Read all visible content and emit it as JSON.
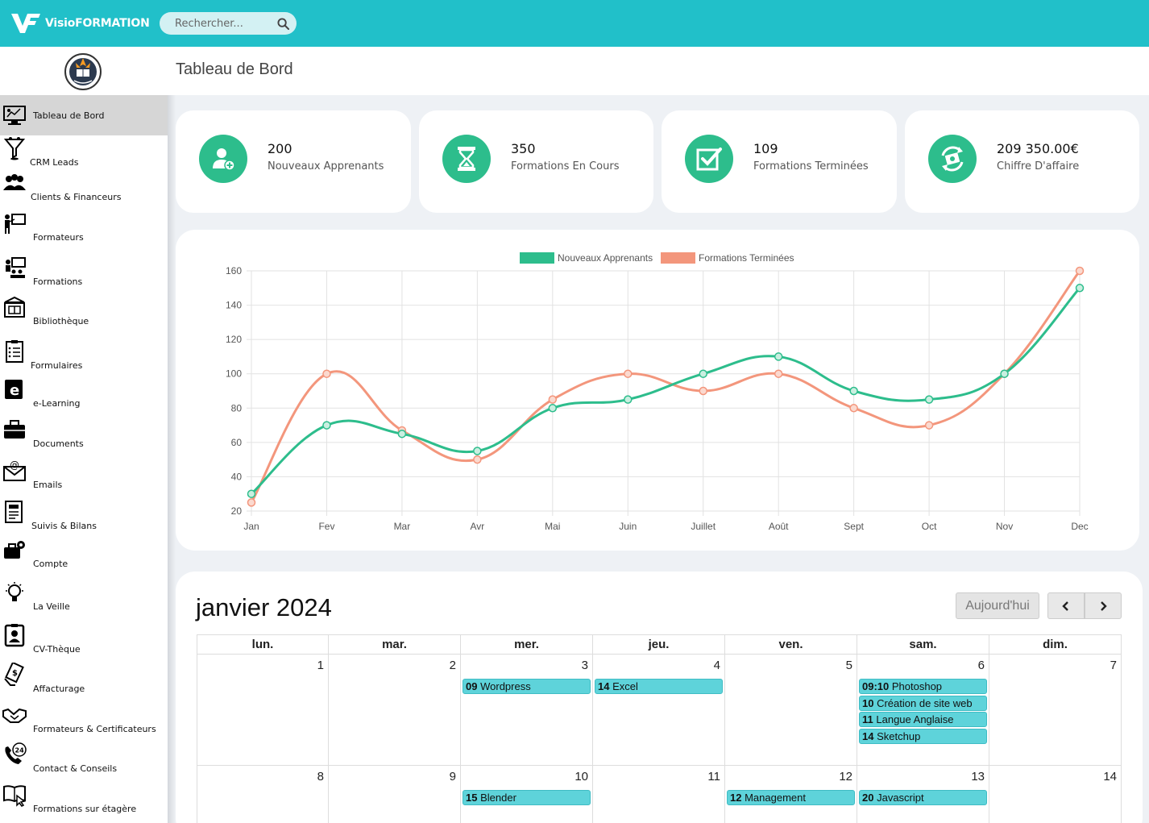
{
  "topbar": {
    "logo_text": "VisioFORMATION",
    "search_placeholder": "Rechercher..."
  },
  "sidebar": {
    "items": [
      {
        "label": "Tableau de Bord",
        "icon": "dashboard-icon",
        "active": true
      },
      {
        "label": "CRM Leads",
        "icon": "funnel-icon"
      },
      {
        "label": "Clients & Financeurs",
        "icon": "people-icon"
      },
      {
        "label": "Formateurs",
        "icon": "trainer-board-icon"
      },
      {
        "label": "Formations",
        "icon": "classroom-icon"
      },
      {
        "label": "Bibliothèque",
        "icon": "library-icon"
      },
      {
        "label": "Formulaires",
        "icon": "checklist-icon"
      },
      {
        "label": "e-Learning",
        "icon": "elearning-book-icon"
      },
      {
        "label": "Documents",
        "icon": "briefcase-icon"
      },
      {
        "label": "Emails",
        "icon": "email-icon"
      },
      {
        "label": "Suivis & Bilans",
        "icon": "report-icon"
      },
      {
        "label": "Compte",
        "icon": "account-gear-icon"
      },
      {
        "label": "La Veille",
        "icon": "lightbulb-icon"
      },
      {
        "label": "CV-Thèque",
        "icon": "cv-icon"
      },
      {
        "label": "Affacturage",
        "icon": "money-hand-icon"
      },
      {
        "label": "Formateurs & Certificateurs",
        "icon": "handshake-icon"
      },
      {
        "label": "Contact & Conseils",
        "icon": "phone-24-icon"
      },
      {
        "label": "Formations sur étagère",
        "icon": "book-pointer-icon"
      }
    ]
  },
  "header": {
    "title": "Tableau de Bord"
  },
  "stats": [
    {
      "value": "200",
      "label": "Nouveaux Apprenants",
      "icon": "user-add-icon"
    },
    {
      "value": "350",
      "label": "Formations En Cours",
      "icon": "hourglass-icon"
    },
    {
      "value": "109",
      "label": "Formations Terminées",
      "icon": "checkbox-icon"
    },
    {
      "value": "209 350.00€",
      "label": "Chiffre D'affaire",
      "icon": "money-cycle-icon"
    }
  ],
  "colors": {
    "accent": "#21c0c9",
    "green": "#2dbd8c",
    "salmon": "#f3967c",
    "event": "#5ed3da"
  },
  "chart_data": {
    "type": "line",
    "categories": [
      "Jan",
      "Fev",
      "Mar",
      "Avr",
      "Mai",
      "Juin",
      "Juillet",
      "Août",
      "Sept",
      "Oct",
      "Nov",
      "Dec"
    ],
    "series": [
      {
        "name": "Nouveaux Apprenants",
        "color": "#2dbd8c",
        "values": [
          30,
          70,
          65,
          55,
          80,
          85,
          100,
          110,
          90,
          85,
          100,
          150
        ]
      },
      {
        "name": "Formations Terminées",
        "color": "#f3967c",
        "values": [
          25,
          100,
          67,
          50,
          85,
          100,
          90,
          100,
          80,
          70,
          100,
          160
        ]
      }
    ],
    "yticks": [
      20,
      40,
      60,
      80,
      100,
      120,
      140,
      160
    ],
    "ylim": [
      20,
      160
    ],
    "grid": true,
    "legend": "top-center",
    "smooth": true
  },
  "calendar": {
    "title": "janvier 2024",
    "today_label": "Aujourd'hui",
    "weekdays": [
      "lun.",
      "mar.",
      "mer.",
      "jeu.",
      "ven.",
      "sam.",
      "dim."
    ],
    "weeks": [
      {
        "days": [
          "1",
          "2",
          "3",
          "4",
          "5",
          "6",
          "7"
        ],
        "events": [
          {
            "day": 2,
            "slot": 0,
            "time": "09",
            "title": "Wordpress"
          },
          {
            "day": 3,
            "slot": 0,
            "time": "14",
            "title": "Excel"
          },
          {
            "day": 5,
            "slot": 0,
            "time": "09:10",
            "title": "Photoshop"
          },
          {
            "day": 5,
            "slot": 1,
            "time": "10",
            "title": "Création de site web"
          },
          {
            "day": 5,
            "slot": 2,
            "time": "11",
            "title": "Langue Anglaise"
          },
          {
            "day": 5,
            "slot": 3,
            "time": "14",
            "title": "Sketchup"
          }
        ]
      },
      {
        "days": [
          "8",
          "9",
          "10",
          "11",
          "12",
          "13",
          "14"
        ],
        "events": [
          {
            "day": 2,
            "slot": 0,
            "time": "15",
            "title": "Blender"
          },
          {
            "day": 4,
            "slot": 0,
            "time": "12",
            "title": "Management"
          },
          {
            "day": 5,
            "slot": 0,
            "time": "20",
            "title": "Javascript"
          }
        ]
      }
    ]
  }
}
